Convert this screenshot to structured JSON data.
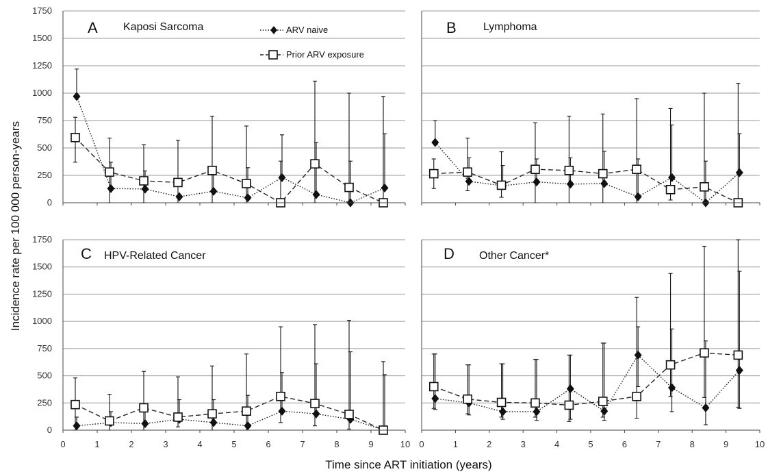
{
  "chart_data": {
    "type": "line",
    "xlabel": "Time since ART initiation (years)",
    "ylabel": "Incidence rate per 100 000 person-years",
    "xlim": [
      0,
      10
    ],
    "ylim": [
      0,
      1750
    ],
    "xticks": [
      0,
      1,
      2,
      3,
      4,
      5,
      6,
      7,
      8,
      9,
      10
    ],
    "yticks": [
      0,
      250,
      500,
      750,
      1000,
      1250,
      1500,
      1750
    ],
    "grid": "horizontal",
    "legend": {
      "placement": "top-center of panel A",
      "entries": [
        {
          "name": "ARV naive",
          "marker": "filled-diamond",
          "line": "dotted"
        },
        {
          "name": "Prior ARV exposure",
          "marker": "open-square",
          "line": "dashed"
        }
      ]
    },
    "colors": {
      "line": "#222222",
      "grid": "#9a9a9a",
      "axis": "#444444",
      "marker_fill_open": "#ffffff"
    },
    "panels": [
      {
        "letter": "A",
        "title": "Kaposi Sarcoma",
        "series": [
          {
            "name": "ARV naive",
            "x": [
              0.4,
              1.4,
              2.4,
              3.4,
              4.4,
              5.4,
              6.4,
              7.4,
              8.4,
              9.4
            ],
            "y": [
              970,
              130,
              125,
              55,
              105,
              45,
              230,
              75,
              0,
              135
            ],
            "upper": [
              1220,
              370,
              290,
              0,
              310,
              320,
              620,
              550,
              380,
              630
            ]
          },
          {
            "name": "Prior ARV exposure",
            "x": [
              0.4,
              1.4,
              2.4,
              3.4,
              4.4,
              5.4,
              6.4,
              7.4,
              8.4,
              9.4
            ],
            "y": [
              595,
              280,
              200,
              185,
              295,
              175,
              0,
              355,
              140,
              0
            ],
            "upper": [
              780,
              590,
              530,
              570,
              790,
              700,
              380,
              1110,
              1000,
              970
            ],
            "lower": [
              370,
              0,
              0,
              0,
              0,
              0,
              0,
              0,
              0,
              0
            ]
          }
        ]
      },
      {
        "letter": "B",
        "title": "Lymphoma",
        "series": [
          {
            "name": "ARV naive",
            "x": [
              0.4,
              1.4,
              2.4,
              3.4,
              4.4,
              5.4,
              6.4,
              7.4,
              8.4,
              9.4
            ],
            "y": [
              550,
              195,
              155,
              190,
              170,
              175,
              55,
              230,
              0,
              275
            ],
            "upper": [
              750,
              410,
              340,
              400,
              410,
              470,
              400,
              710,
              380,
              630
            ]
          },
          {
            "name": "Prior ARV exposure",
            "x": [
              0.4,
              1.4,
              2.4,
              3.4,
              4.4,
              5.4,
              6.4,
              7.4,
              8.4,
              9.4
            ],
            "y": [
              265,
              280,
              160,
              305,
              295,
              265,
              305,
              120,
              145,
              0
            ],
            "upper": [
              400,
              590,
              465,
              730,
              790,
              810,
              950,
              860,
              1000,
              1090
            ],
            "lower": [
              130,
              110,
              50,
              0,
              0,
              0,
              0,
              25,
              0,
              0
            ]
          }
        ]
      },
      {
        "letter": "C",
        "title": "HPV-Related Cancer",
        "series": [
          {
            "name": "ARV naive",
            "x": [
              0.4,
              1.4,
              2.4,
              3.4,
              4.4,
              5.4,
              6.4,
              7.4,
              8.4,
              9.4
            ],
            "y": [
              40,
              70,
              60,
              100,
              70,
              40,
              175,
              150,
              100,
              0
            ],
            "upper": [
              120,
              170,
              170,
              280,
              280,
              320,
              530,
              610,
              720,
              510
            ]
          },
          {
            "name": "Prior ARV exposure",
            "x": [
              0.4,
              1.4,
              2.4,
              3.4,
              4.4,
              5.4,
              6.4,
              7.4,
              8.4,
              9.4
            ],
            "y": [
              235,
              85,
              205,
              120,
              150,
              175,
              310,
              245,
              145,
              0
            ],
            "upper": [
              480,
              330,
              540,
              490,
              590,
              700,
              950,
              970,
              1010,
              630
            ],
            "lower": [
              0,
              0,
              0,
              30,
              0,
              0,
              70,
              40,
              10,
              0
            ]
          }
        ]
      },
      {
        "letter": "D",
        "title": "Other Cancer*",
        "series": [
          {
            "name": "ARV naive",
            "x": [
              0.4,
              1.4,
              2.4,
              3.4,
              4.4,
              5.4,
              6.4,
              7.4,
              8.4,
              9.4
            ],
            "y": [
              290,
              250,
              170,
              170,
              380,
              175,
              690,
              390,
              205,
              550
            ],
            "upper": [
              700,
              600,
              610,
              650,
              690,
              800,
              950,
              930,
              820,
              1460
            ],
            "lower": [
              190,
              140,
              100,
              90,
              100,
              90,
              400,
              170,
              50,
              200
            ]
          },
          {
            "name": "Prior ARV exposure",
            "x": [
              0.4,
              1.4,
              2.4,
              3.4,
              4.4,
              5.4,
              6.4,
              7.4,
              8.4,
              9.4
            ],
            "y": [
              400,
              285,
              255,
              250,
              230,
              265,
              310,
              600,
              710,
              690
            ],
            "upper": [
              700,
              600,
              610,
              650,
              690,
              800,
              1220,
              1440,
              1690,
              1750
            ],
            "lower": [
              200,
              150,
              120,
              120,
              80,
              120,
              110,
              310,
              300,
              210
            ]
          }
        ]
      }
    ]
  }
}
